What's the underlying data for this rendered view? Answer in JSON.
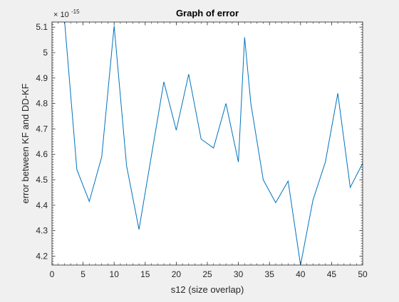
{
  "chart_data": {
    "type": "line",
    "title": "Graph of error",
    "xlabel": "s12 (size overlap)",
    "ylabel": "error between KF and DD-KF",
    "y_exponent_label": "× 10",
    "y_exponent_power": "-15",
    "xlim": [
      0,
      50
    ],
    "ylim": [
      4.165,
      5.12
    ],
    "x_ticks": [
      0,
      5,
      10,
      15,
      20,
      25,
      30,
      35,
      40,
      45,
      50
    ],
    "y_ticks": [
      4.2,
      4.3,
      4.4,
      4.5,
      4.6,
      4.7,
      4.8,
      4.9,
      5,
      5.1
    ],
    "y_tick_labels": [
      "4.2",
      "4.3",
      "4.4",
      "4.5",
      "4.6",
      "4.7",
      "4.8",
      "4.9",
      "5",
      "5.1"
    ],
    "grid": false,
    "series": [
      {
        "color": "#0072BD",
        "x": [
          2,
          4,
          6,
          8,
          10,
          12,
          14,
          16,
          18,
          20,
          22,
          24,
          26,
          28,
          30,
          31,
          32,
          34,
          36,
          38,
          40,
          42,
          44,
          46,
          48,
          50
        ],
        "values": [
          5.13,
          4.54,
          4.415,
          4.59,
          5.105,
          4.555,
          4.305,
          4.595,
          4.885,
          4.695,
          4.915,
          4.66,
          4.625,
          4.8,
          4.57,
          5.06,
          4.8,
          4.5,
          4.41,
          4.495,
          4.165,
          4.42,
          4.57,
          4.84,
          4.47,
          4.565
        ]
      }
    ]
  }
}
